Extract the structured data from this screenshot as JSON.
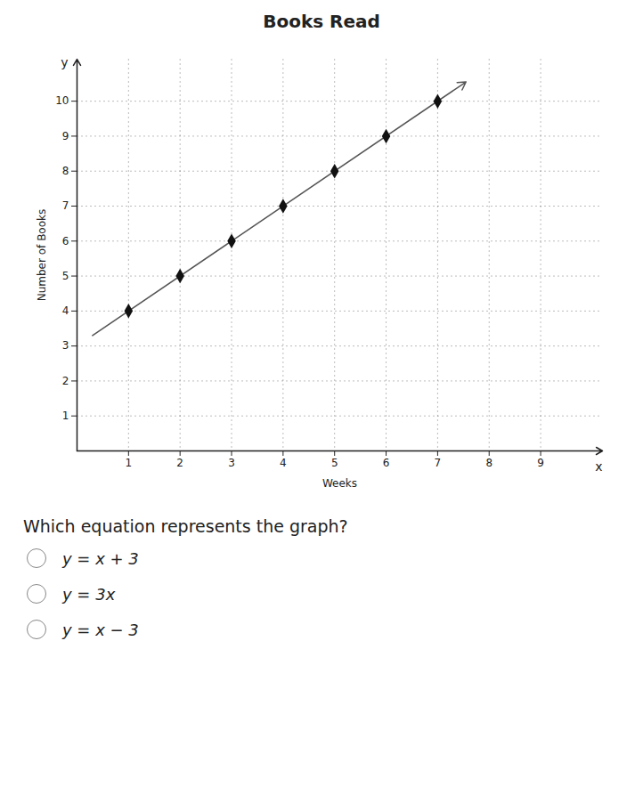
{
  "chart_data": {
    "type": "scatter",
    "title": "Books Read",
    "xlabel": "Weeks",
    "ylabel": "Number of Books",
    "x": [
      1,
      2,
      3,
      4,
      5,
      6,
      7
    ],
    "values": [
      4,
      5,
      6,
      7,
      8,
      9,
      10
    ],
    "color": "#111111",
    "marker": "diamond",
    "lines": [
      {
        "x": [
          0.3,
          7.55
        ],
        "values": [
          3.3,
          10.55
        ],
        "color": "#555555"
      }
    ],
    "xlim": [
      0,
      10.2
    ],
    "ylim": [
      0,
      11.2
    ],
    "xticks": [
      1,
      2,
      3,
      4,
      5,
      6,
      7,
      8,
      9
    ],
    "yticks": [
      1,
      2,
      3,
      4,
      5,
      6,
      7,
      8,
      9,
      10
    ],
    "grid": true,
    "annotations": [
      "y",
      "x"
    ],
    "question": "Which equation represents the graph?",
    "options": [
      "y = x + 3",
      "y = 3x",
      "y = x − 3"
    ]
  }
}
